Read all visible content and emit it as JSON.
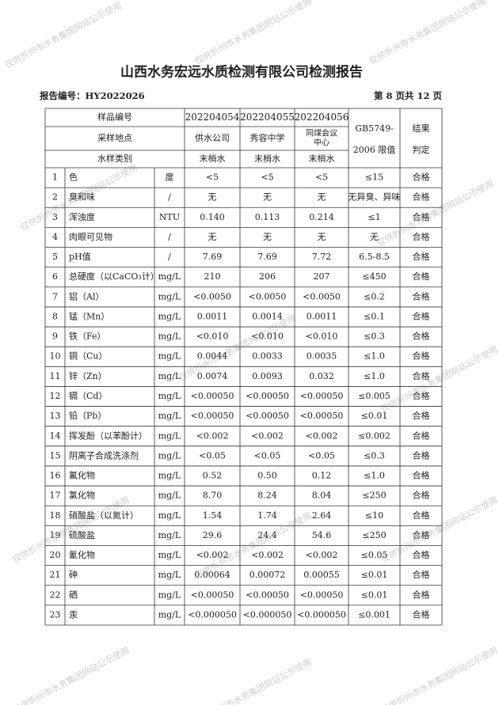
{
  "title": "山西水务宏远水质检测有限公司检测报告",
  "report_no": "报告编号：HY2022026",
  "page": "第 8 页共 12 页",
  "watermark": "仅供忻州市水务集团网站公示使用",
  "table": {
    "header": {
      "sample_no_label": "样品编号",
      "location_label": "采样地点",
      "type_label": "水样类别",
      "samples": [
        "202204054",
        "202204055",
        "202204056"
      ],
      "locations": [
        [
          "供水公司"
        ],
        [
          "秀容中学"
        ],
        [
          "同煤会议",
          "中心"
        ]
      ],
      "types": [
        "末梢水",
        "末梢水",
        "末梢水"
      ],
      "standard": [
        "GB5749-",
        "2006 限值"
      ],
      "result": [
        "结果",
        "判定"
      ]
    },
    "rows": [
      [
        "1",
        "色",
        "度",
        "<5",
        "<5",
        "<5",
        "≤15",
        "合格"
      ],
      [
        "2",
        "臭和味",
        "/",
        "无",
        "无",
        "无",
        "无异臭、异味",
        "合格"
      ],
      [
        "3",
        "浑浊度",
        "NTU",
        "0.140",
        "0.113",
        "0.214",
        "≤1",
        "合格"
      ],
      [
        "4",
        "肉眼可见物",
        "/",
        "无",
        "无",
        "无",
        "无",
        "合格"
      ],
      [
        "5",
        "pH值",
        "/",
        "7.69",
        "7.69",
        "7.72",
        "6.5-8.5",
        "合格"
      ],
      [
        "6",
        "总硬度（以CaCO₃计）",
        "mg/L",
        "210",
        "206",
        "207",
        "≤450",
        "合格"
      ],
      [
        "7",
        "铝（Al）",
        "mg/L",
        "<0.0050",
        "<0.0050",
        "<0.0050",
        "≤0.2",
        "合格"
      ],
      [
        "8",
        "锰（Mn）",
        "mg/L",
        "0.0011",
        "0.0014",
        "0.0011",
        "≤0.1",
        "合格"
      ],
      [
        "9",
        "铁（Fe）",
        "mg/L",
        "<0.010",
        "<0.010",
        "<0.010",
        "≤0.3",
        "合格"
      ],
      [
        "10",
        "铜（Cu）",
        "mg/L",
        "0.0044",
        "0.0033",
        "0.0035",
        "≤1.0",
        "合格"
      ],
      [
        "11",
        "锌（Zn）",
        "mg/L",
        "0.0074",
        "0.0093",
        "0.032",
        "≤1.0",
        "合格"
      ],
      [
        "12",
        "镉（Cd）",
        "mg/L",
        "<0.00050",
        "<0.00050",
        "<0.00050",
        "≤0.005",
        "合格"
      ],
      [
        "13",
        "铅（Pb）",
        "mg/L",
        "<0.00050",
        "<0.00050",
        "<0.00050",
        "≤0.01",
        "合格"
      ],
      [
        "14",
        "挥发酚（以苯酚计）",
        "mg/L",
        "<0.002",
        "<0.002",
        "<0.002",
        "≤0.002",
        "合格"
      ],
      [
        "15",
        "阴离子合成洗涤剂",
        "mg/L",
        "<0.05",
        "<0.05",
        "<0.05",
        "≤0.3",
        "合格"
      ],
      [
        "16",
        "氟化物",
        "mg/L",
        "0.52",
        "0.50",
        "0.12",
        "≤1.0",
        "合格"
      ],
      [
        "17",
        "氯化物",
        "mg/L",
        "8.70",
        "8.24",
        "8.04",
        "≤250",
        "合格"
      ],
      [
        "18",
        "硝酸盐（以氮计）",
        "mg/L",
        "1.54",
        "1.74",
        "2.64",
        "≤10",
        "合格"
      ],
      [
        "19",
        "硫酸盐",
        "mg/L",
        "29.6",
        "24.4",
        "54.6",
        "≤250",
        "合格"
      ],
      [
        "20",
        "氰化物",
        "mg/L",
        "<0.002",
        "<0.002",
        "<0.002",
        "≤0.05",
        "合格"
      ],
      [
        "21",
        "砷",
        "mg/L",
        "0.00064",
        "0.00072",
        "0.00055",
        "≤0.01",
        "合格"
      ],
      [
        "22",
        "硒",
        "mg/L",
        "<0.00050",
        "<0.00050",
        "<0.00050",
        "≤0.01",
        "合格"
      ],
      [
        "23",
        "汞",
        "mg/L",
        "<0.000050",
        "<0.000050",
        "<0.000050",
        "≤0.001",
        "合格"
      ]
    ]
  }
}
